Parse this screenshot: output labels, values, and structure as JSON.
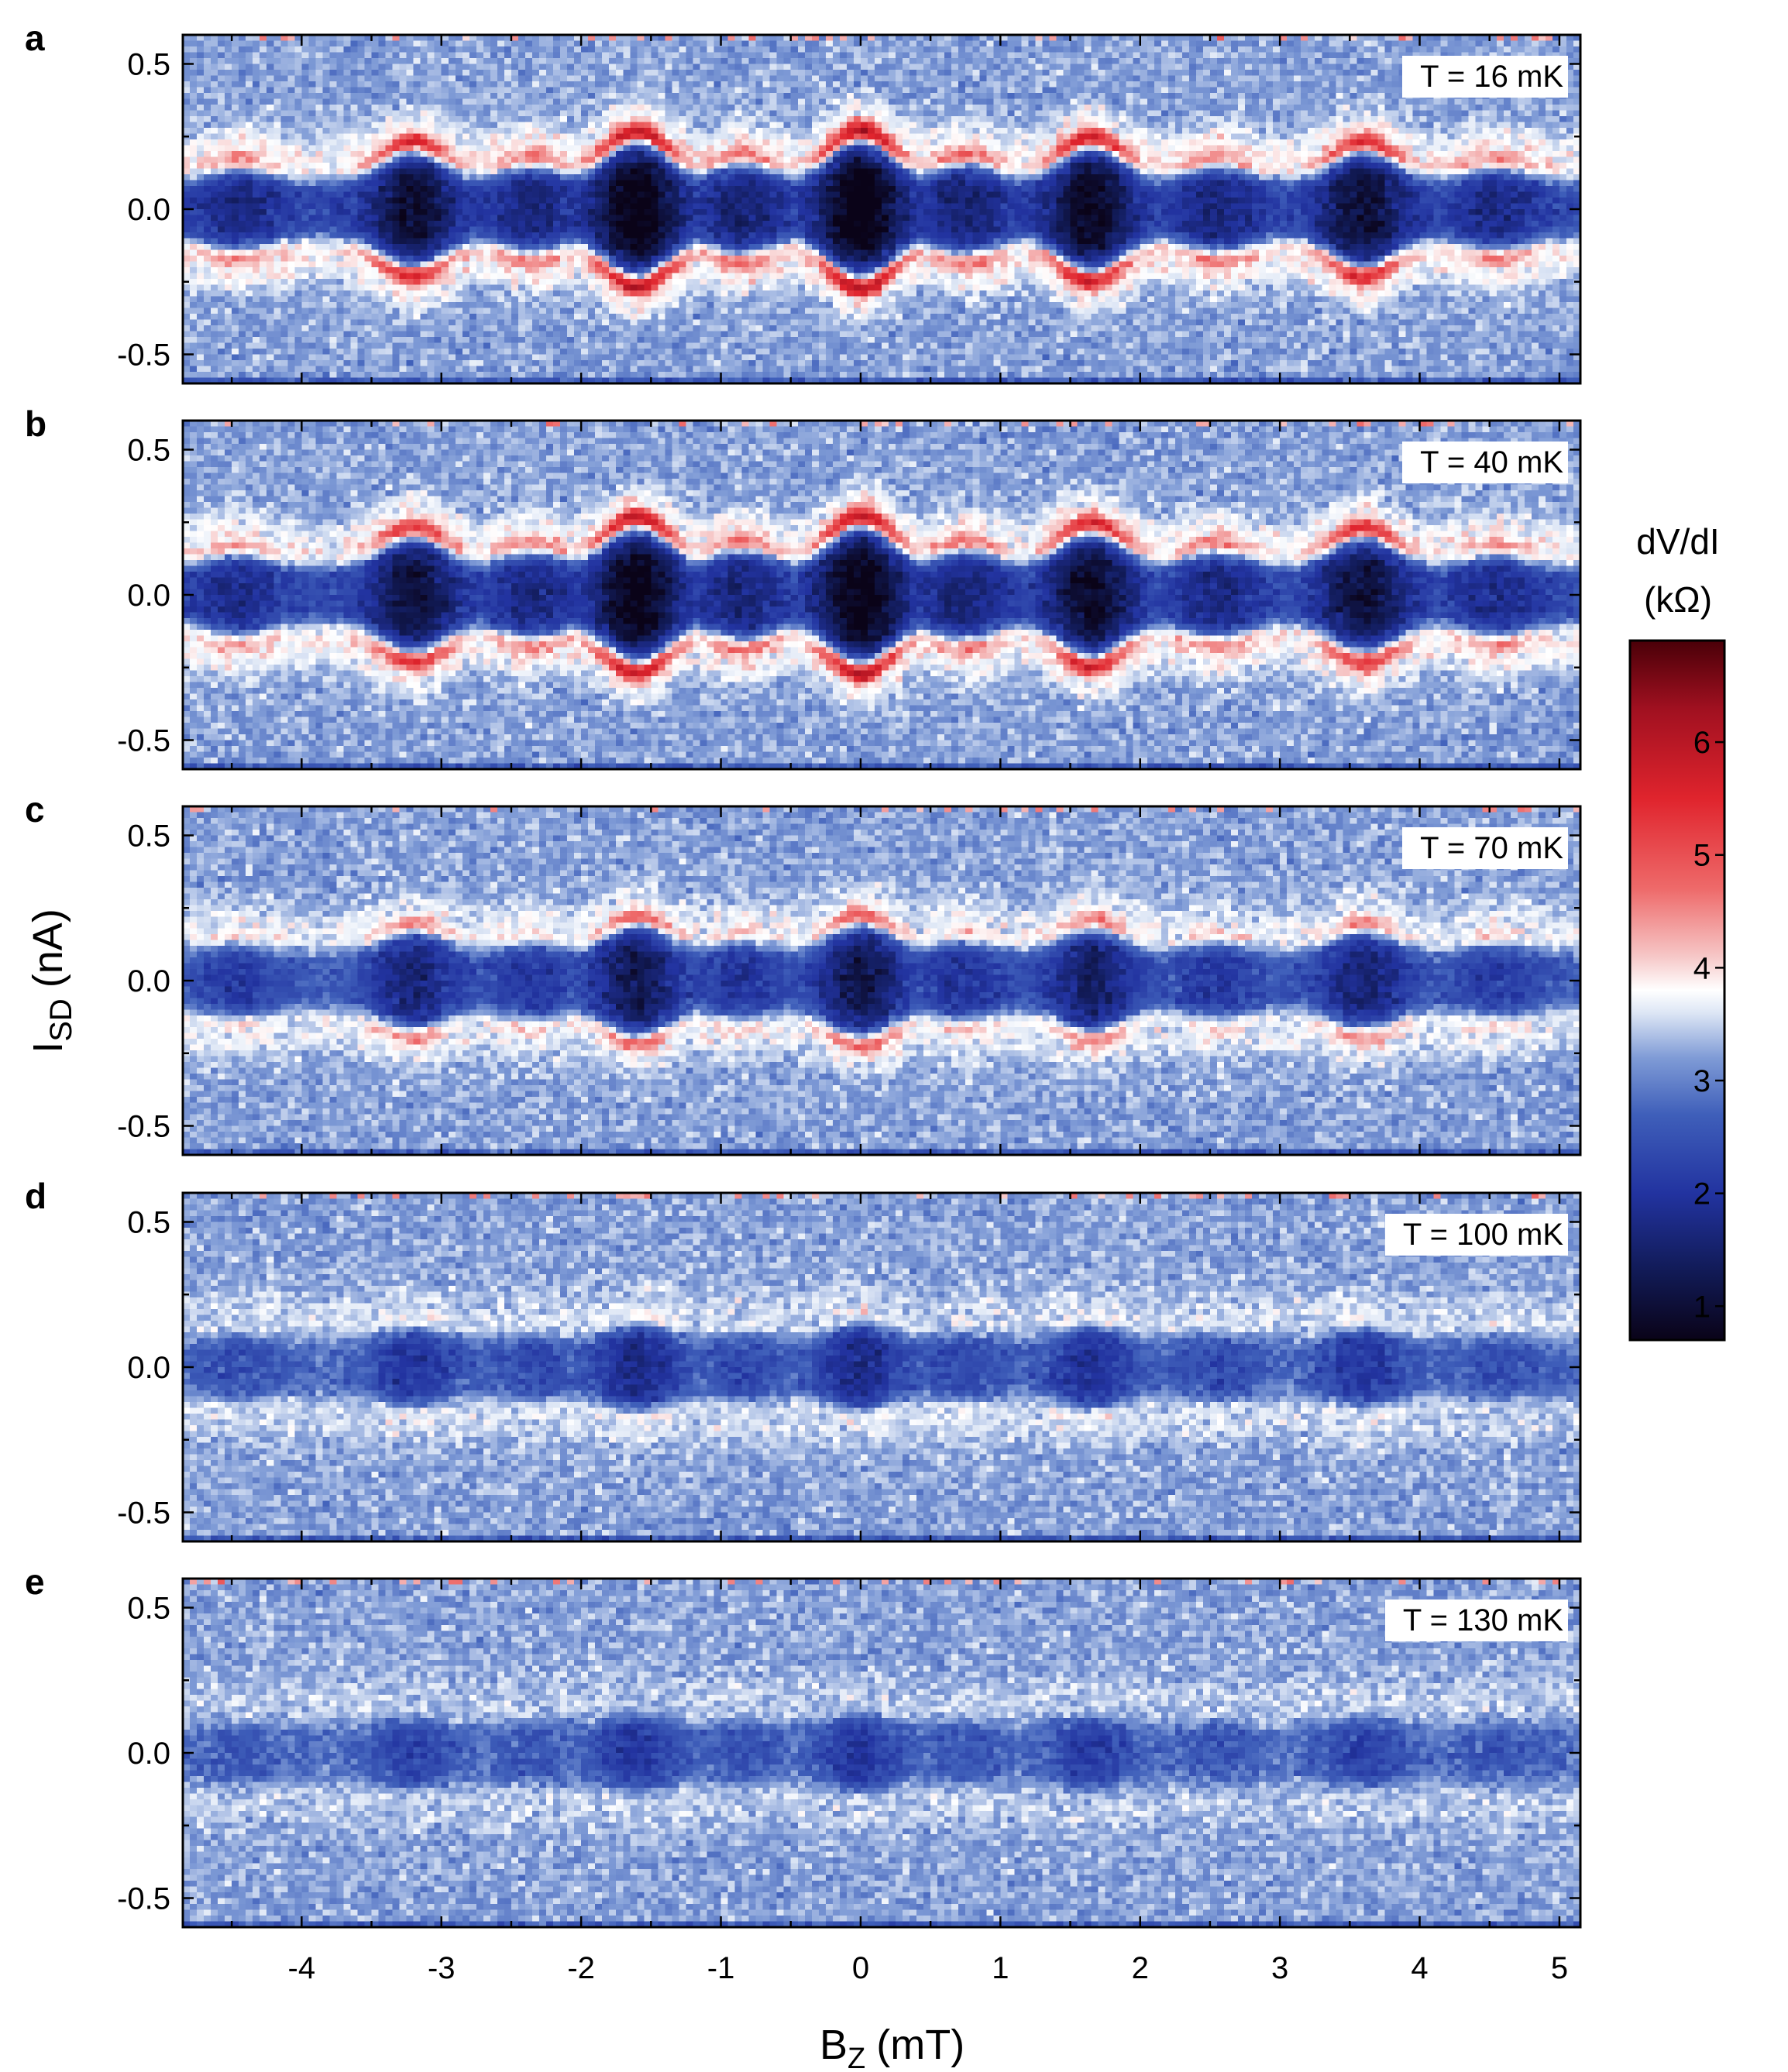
{
  "chart_data": {
    "type": "heatmap",
    "x_label_main": "B",
    "x_label_sub": "Z",
    "x_label_unit": "(mT)",
    "y_label_main": "I",
    "y_label_sub": "SD",
    "y_label_unit": "(nA)",
    "xlim": [
      -4.85,
      5.15
    ],
    "ylim": [
      -0.6,
      0.6
    ],
    "x_ticks": [
      -4,
      -3,
      -2,
      -1,
      0,
      1,
      2,
      3,
      4,
      5
    ],
    "x_tick_labels": [
      "-4",
      "-3",
      "-2",
      "-1",
      "0",
      "1",
      "2",
      "3",
      "4",
      "5"
    ],
    "y_ticks": [
      0.5,
      0.0,
      -0.5
    ],
    "y_tick_labels": [
      "0.5",
      "0.0",
      "-0.5"
    ],
    "fringe_centers_mT": [
      -4.45,
      -3.2,
      -2.35,
      -1.6,
      -0.85,
      0.0,
      0.75,
      1.65,
      2.55,
      3.6,
      4.55
    ],
    "fringe_strength": [
      0.35,
      0.75,
      0.4,
      0.97,
      0.45,
      1.0,
      0.45,
      0.85,
      0.4,
      0.75,
      0.35
    ],
    "panels": [
      {
        "letter": "a",
        "temperature": "T = 16 mK",
        "amplitude": 1.0
      },
      {
        "letter": "b",
        "temperature": "T = 40 mK",
        "amplitude": 0.95
      },
      {
        "letter": "c",
        "temperature": "T = 70 mK",
        "amplitude": 0.6
      },
      {
        "letter": "d",
        "temperature": "T = 100 mK",
        "amplitude": 0.3
      },
      {
        "letter": "e",
        "temperature": "T = 130 mK",
        "amplitude": 0.15
      }
    ],
    "colorbar": {
      "title_line1": "dV/dI",
      "title_line2": "(kΩ)",
      "range": [
        0.7,
        6.9
      ],
      "ticks": [
        1,
        2,
        3,
        4,
        5,
        6
      ],
      "tick_labels": [
        "1",
        "2",
        "3",
        "4",
        "5",
        "6"
      ],
      "color_stops": [
        {
          "v": 0.7,
          "color": "#0a0318"
        },
        {
          "v": 1.3,
          "color": "#111a55"
        },
        {
          "v": 2.0,
          "color": "#2233a0"
        },
        {
          "v": 2.7,
          "color": "#3f5fba"
        },
        {
          "v": 3.2,
          "color": "#7f9bd6"
        },
        {
          "v": 3.6,
          "color": "#dde6f5"
        },
        {
          "v": 3.8,
          "color": "#ffffff"
        },
        {
          "v": 4.1,
          "color": "#f6c7c7"
        },
        {
          "v": 4.7,
          "color": "#ee6a6a"
        },
        {
          "v": 5.5,
          "color": "#e0242d"
        },
        {
          "v": 6.3,
          "color": "#a01020"
        },
        {
          "v": 6.9,
          "color": "#4a0008"
        }
      ]
    }
  }
}
